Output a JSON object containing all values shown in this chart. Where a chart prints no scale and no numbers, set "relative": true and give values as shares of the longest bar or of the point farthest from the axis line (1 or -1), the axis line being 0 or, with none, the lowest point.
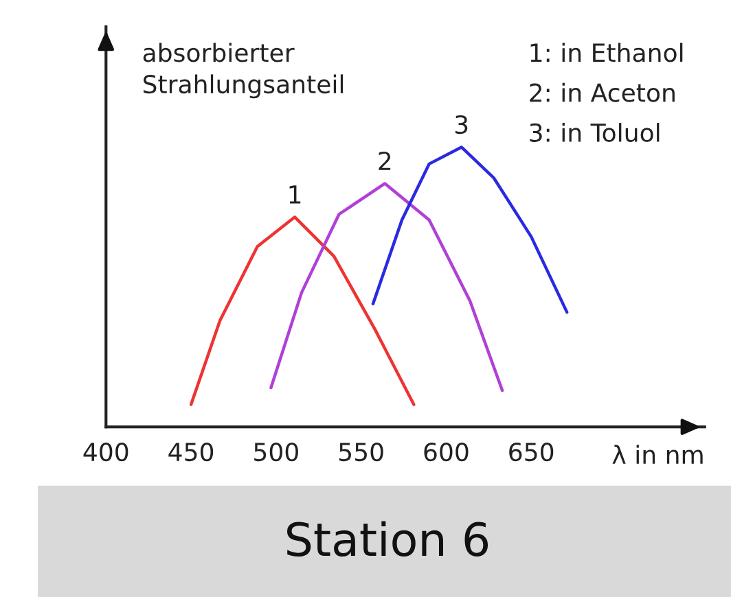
{
  "chart_data": {
    "type": "line",
    "title": "Station 6",
    "xlabel": "λ in nm",
    "ylabel": "absorbierter\nStrahlungsanteil",
    "relative": true,
    "xlim": [
      400,
      752
    ],
    "xticks": [
      400,
      450,
      500,
      550,
      600,
      650
    ],
    "grid": false,
    "legend": false,
    "marker": "none",
    "line_style": "solid",
    "series": [
      {
        "name": "1",
        "color": "#ee3333",
        "x": [
          450,
          467,
          489,
          511,
          534,
          558,
          581
        ],
        "values": [
          0.08,
          0.38,
          0.645,
          0.75,
          0.61,
          0.35,
          0.08
        ]
      },
      {
        "name": "2",
        "color": "#b040d8",
        "x": [
          497,
          515,
          537,
          564,
          590,
          614,
          633
        ],
        "values": [
          0.14,
          0.48,
          0.76,
          0.87,
          0.74,
          0.45,
          0.13
        ]
      },
      {
        "name": "3",
        "color": "#2a2ae0",
        "x": [
          557,
          574,
          590,
          609,
          628,
          650,
          671
        ],
        "values": [
          0.44,
          0.74,
          0.94,
          1,
          0.89,
          0.68,
          0.41
        ]
      }
    ],
    "annotations": [
      "1: in Ethanol",
      "2: in Aceton",
      "3: in Toluol"
    ]
  }
}
